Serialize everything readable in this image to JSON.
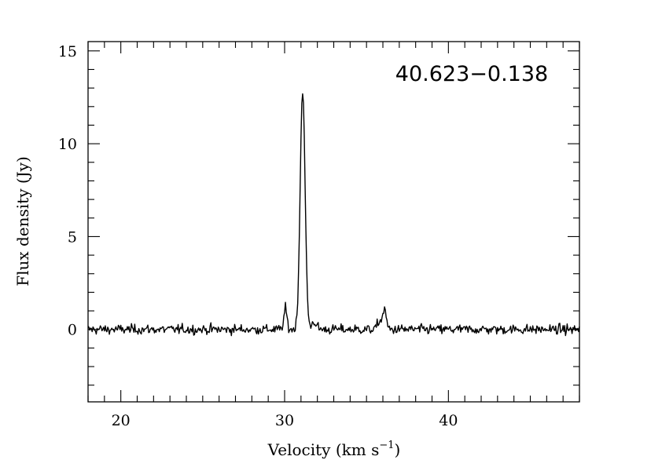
{
  "chart_data": {
    "type": "line",
    "source_label": "40.623−0.138",
    "xlabel": "Velocity (km s",
    "xlabel_sup": "−1",
    "xlabel_close": ")",
    "ylabel": "Flux density (Jy)",
    "xlim": [
      18,
      48
    ],
    "ylim": [
      -3.9,
      15.5
    ],
    "x_ticks": [
      20,
      30,
      40
    ],
    "x_tick_labels": [
      "20",
      "30",
      "40"
    ],
    "y_ticks": [
      0,
      5,
      10,
      15
    ],
    "y_tick_labels": [
      "0",
      "5",
      "10",
      "15"
    ],
    "x_minor_step": 1,
    "y_minor_step": 1,
    "grid": false,
    "series": [
      {
        "color": "#000000",
        "noise_rms": 0.13,
        "baseline": 0.0,
        "features": [
          {
            "center": 31.1,
            "peak": 12.9,
            "fwhm": 0.35
          },
          {
            "center": 30.05,
            "peak": 1.1,
            "fwhm": 0.22
          },
          {
            "center": 36.1,
            "peak": 1.05,
            "fwhm": 0.25
          },
          {
            "center": 35.8,
            "peak": 0.45,
            "fwhm": 0.3
          },
          {
            "center": 31.8,
            "peak": 0.4,
            "fwhm": 0.35
          }
        ]
      }
    ]
  }
}
